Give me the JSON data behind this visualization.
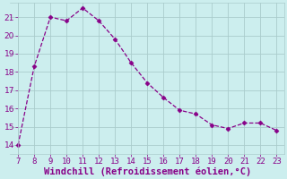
{
  "x": [
    7,
    8,
    9,
    10,
    11,
    12,
    13,
    14,
    15,
    16,
    17,
    18,
    19,
    20,
    21,
    22,
    23
  ],
  "y": [
    14.0,
    18.3,
    21.0,
    20.8,
    21.5,
    20.8,
    19.8,
    18.5,
    17.4,
    16.6,
    15.9,
    15.7,
    15.1,
    14.9,
    15.2,
    15.2,
    14.8
  ],
  "line_color": "#880088",
  "marker": "D",
  "marker_size": 2.5,
  "background_color": "#cceeee",
  "grid_color": "#aacccc",
  "xlabel": "Windchill (Refroidissement éolien,°C)",
  "xlabel_color": "#880088",
  "xlim": [
    6.5,
    23.5
  ],
  "ylim": [
    13.5,
    21.8
  ],
  "yticks": [
    14,
    15,
    16,
    17,
    18,
    19,
    20,
    21
  ],
  "xticks": [
    7,
    8,
    9,
    10,
    11,
    12,
    13,
    14,
    15,
    16,
    17,
    18,
    19,
    20,
    21,
    22,
    23
  ],
  "tick_color": "#880088",
  "tick_fontsize": 6.5,
  "xlabel_fontsize": 7.5,
  "linewidth": 0.9,
  "linestyle": "--"
}
